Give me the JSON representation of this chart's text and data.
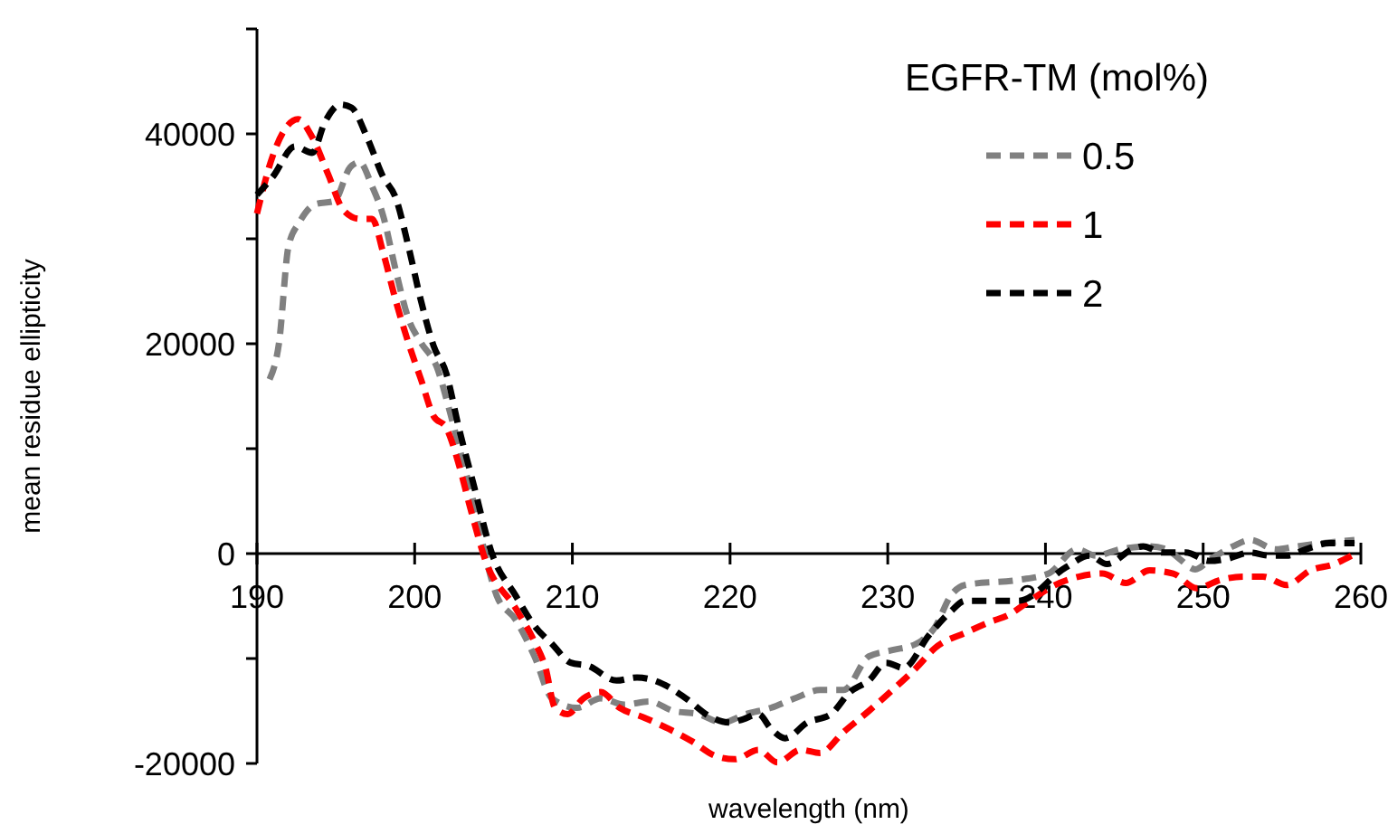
{
  "chart_data": {
    "type": "line",
    "xlabel": "wavelength (nm)",
    "ylabel": "mean residue ellipticity",
    "legend_title": "EGFR-TM (mol%)",
    "legend": "top right",
    "grid": false,
    "line_style": "dashed",
    "xlim": [
      190,
      260
    ],
    "xticks": [
      190,
      200,
      210,
      220,
      230,
      240,
      250,
      260
    ],
    "ylim": [
      -20000,
      50000
    ],
    "yticks": [
      -20000,
      {
        "value": -10000,
        "label": null
      },
      0,
      {
        "value": 10000,
        "label": null
      },
      20000,
      {
        "value": 30000,
        "label": null
      },
      40000,
      {
        "value": 50000,
        "label": null
      }
    ],
    "series": [
      {
        "name": "0.5",
        "color": "#808080",
        "x": [
          190.8,
          191.4,
          192,
          192.7,
          193.7,
          194.9,
          195.9,
          196.5,
          197.3,
          198,
          198.8,
          199.6,
          200.4,
          201.4,
          202.2,
          203,
          203.7,
          204.3,
          205.2,
          206.4,
          207.6,
          208.7,
          210.3,
          211.8,
          213.3,
          214.9,
          216.4,
          218,
          219.5,
          221,
          222.6,
          224.1,
          225.7,
          227.2,
          228.8,
          230.3,
          231.8,
          233,
          234,
          234.9,
          238.3,
          240.2,
          242,
          243.2,
          244.7,
          246.6,
          247.7,
          248.5,
          249.5,
          250.5,
          251.9,
          253,
          254.6,
          256,
          257.6,
          259.6
        ],
        "values": [
          16600,
          20100,
          29300,
          31600,
          33300,
          33600,
          36800,
          37300,
          35000,
          32200,
          27000,
          22400,
          20100,
          17800,
          13700,
          9100,
          5100,
          1000,
          -4000,
          -6300,
          -9800,
          -13800,
          -14700,
          -13800,
          -14400,
          -14100,
          -15000,
          -15300,
          -16100,
          -15300,
          -14700,
          -13800,
          -13000,
          -13000,
          -9800,
          -9200,
          -8600,
          -7000,
          -4000,
          -3000,
          -2500,
          -1900,
          400,
          -200,
          400,
          700,
          400,
          -500,
          -1500,
          -500,
          700,
          1300,
          400,
          700,
          1000,
          1300
        ]
      },
      {
        "name": "1",
        "color": "#ff0000",
        "x": [
          190,
          191,
          191.8,
          192.6,
          193.5,
          194.5,
          195.5,
          196.5,
          197.3,
          198,
          198.8,
          199.6,
          200.4,
          201.2,
          202,
          202.8,
          203.5,
          204.5,
          206.4,
          207.6,
          208.3,
          208.9,
          209.7,
          210.7,
          211.8,
          213,
          214.5,
          216.1,
          217.6,
          219.1,
          220.3,
          221.8,
          223,
          224.5,
          225.7,
          227.2,
          228.8,
          230.3,
          231.8,
          233,
          235,
          236.5,
          237.6,
          239,
          240.6,
          242.1,
          243.6,
          245.1,
          246.6,
          248.1,
          249.6,
          251.1,
          252.6,
          253.8,
          255.3,
          256.8,
          258.3,
          259.4
        ],
        "values": [
          32400,
          37900,
          40500,
          41400,
          39700,
          36200,
          32700,
          31900,
          31900,
          28700,
          24100,
          20100,
          16600,
          13100,
          12000,
          8500,
          4500,
          -700,
          -5200,
          -8400,
          -10900,
          -14700,
          -15300,
          -13800,
          -13200,
          -14700,
          -15600,
          -16700,
          -17900,
          -19300,
          -19600,
          -18700,
          -19900,
          -18700,
          -19000,
          -17000,
          -15000,
          -13000,
          -10900,
          -9000,
          -7500,
          -6500,
          -5900,
          -4500,
          -3000,
          -2200,
          -1900,
          -2800,
          -1600,
          -1900,
          -3300,
          -2500,
          -2200,
          -2200,
          -3000,
          -1600,
          -1000,
          -200
        ]
      },
      {
        "name": "2",
        "color": "#000000",
        "x": [
          190,
          191,
          192.4,
          193.5,
          194.3,
          195.3,
          196,
          197,
          198,
          198.8,
          199.6,
          200.4,
          201.2,
          202,
          202.8,
          203.7,
          204.9,
          206.4,
          207.6,
          208.7,
          209.9,
          211,
          212.8,
          214.1,
          215.7,
          217.2,
          218.8,
          220,
          220.8,
          221.8,
          222.6,
          223.5,
          224.9,
          226.4,
          227.6,
          228.8,
          229.9,
          231,
          232.6,
          234,
          234.9,
          236.8,
          238.3,
          241.3,
          242.8,
          243.9,
          245.5,
          246.2,
          247.4,
          248.9,
          250.4,
          251.5,
          253,
          254.2,
          255.3,
          256.5,
          258,
          259.6
        ],
        "values": [
          34200,
          35900,
          38800,
          38200,
          41100,
          42800,
          42500,
          39600,
          35900,
          33900,
          29300,
          24100,
          19800,
          17200,
          12000,
          6800,
          0,
          -4000,
          -6900,
          -8600,
          -10400,
          -10700,
          -12100,
          -11800,
          -12400,
          -13800,
          -15600,
          -16100,
          -15800,
          -15300,
          -16700,
          -17600,
          -16100,
          -15300,
          -13200,
          -12100,
          -10400,
          -10900,
          -7800,
          -5500,
          -4500,
          -4500,
          -4500,
          -1300,
          -200,
          -1000,
          400,
          700,
          100,
          100,
          -700,
          -500,
          100,
          -200,
          -200,
          400,
          1000,
          1000
        ]
      }
    ]
  }
}
